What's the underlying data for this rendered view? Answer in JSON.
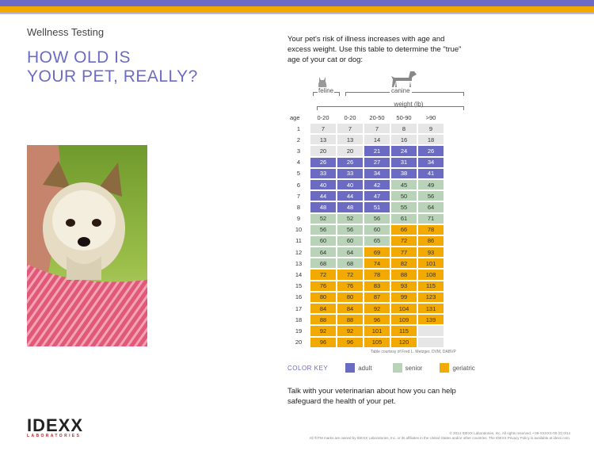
{
  "header": {
    "section": "Wellness Testing",
    "title_line1": "HOW OLD IS",
    "title_line2": "YOUR PET, REALLY?"
  },
  "intro": "Your pet's risk of illness increases with age and excess weight. Use this table to determine the \"true\" age of your cat or dog:",
  "species": {
    "feline": "feline",
    "canine": "canine"
  },
  "table": {
    "weight_label": "weight (lb)",
    "age_label": "age",
    "columns": [
      "0-20",
      "0-20",
      "20-50",
      "50-90",
      ">90"
    ],
    "rows": [
      {
        "age": "1",
        "cells": [
          [
            "7",
            "young"
          ],
          [
            "7",
            "young"
          ],
          [
            "7",
            "young"
          ],
          [
            "8",
            "young"
          ],
          [
            "9",
            "young"
          ]
        ]
      },
      {
        "age": "2",
        "cells": [
          [
            "13",
            "young"
          ],
          [
            "13",
            "young"
          ],
          [
            "14",
            "young"
          ],
          [
            "16",
            "young"
          ],
          [
            "18",
            "young"
          ]
        ]
      },
      {
        "age": "3",
        "cells": [
          [
            "20",
            "young"
          ],
          [
            "20",
            "young"
          ],
          [
            "21",
            "adult"
          ],
          [
            "24",
            "adult"
          ],
          [
            "26",
            "adult"
          ]
        ]
      },
      {
        "age": "4",
        "cells": [
          [
            "26",
            "adult"
          ],
          [
            "26",
            "adult"
          ],
          [
            "27",
            "adult"
          ],
          [
            "31",
            "adult"
          ],
          [
            "34",
            "adult"
          ]
        ]
      },
      {
        "age": "5",
        "cells": [
          [
            "33",
            "adult"
          ],
          [
            "33",
            "adult"
          ],
          [
            "34",
            "adult"
          ],
          [
            "38",
            "adult"
          ],
          [
            "41",
            "adult"
          ]
        ]
      },
      {
        "age": "6",
        "cells": [
          [
            "40",
            "adult"
          ],
          [
            "40",
            "adult"
          ],
          [
            "42",
            "adult"
          ],
          [
            "45",
            "senior"
          ],
          [
            "49",
            "senior"
          ]
        ]
      },
      {
        "age": "7",
        "cells": [
          [
            "44",
            "adult"
          ],
          [
            "44",
            "adult"
          ],
          [
            "47",
            "adult"
          ],
          [
            "50",
            "senior"
          ],
          [
            "56",
            "senior"
          ]
        ]
      },
      {
        "age": "8",
        "cells": [
          [
            "48",
            "adult"
          ],
          [
            "48",
            "adult"
          ],
          [
            "51",
            "adult"
          ],
          [
            "55",
            "senior"
          ],
          [
            "64",
            "senior"
          ]
        ]
      },
      {
        "age": "9",
        "cells": [
          [
            "52",
            "senior"
          ],
          [
            "52",
            "senior"
          ],
          [
            "56",
            "senior"
          ],
          [
            "61",
            "senior"
          ],
          [
            "71",
            "senior"
          ]
        ]
      },
      {
        "age": "10",
        "cells": [
          [
            "56",
            "senior"
          ],
          [
            "56",
            "senior"
          ],
          [
            "60",
            "senior"
          ],
          [
            "66",
            "geriatric"
          ],
          [
            "78",
            "geriatric"
          ]
        ]
      },
      {
        "age": "11",
        "cells": [
          [
            "60",
            "senior"
          ],
          [
            "60",
            "senior"
          ],
          [
            "65",
            "senior"
          ],
          [
            "72",
            "geriatric"
          ],
          [
            "86",
            "geriatric"
          ]
        ]
      },
      {
        "age": "12",
        "cells": [
          [
            "64",
            "senior"
          ],
          [
            "64",
            "senior"
          ],
          [
            "69",
            "geriatric"
          ],
          [
            "77",
            "geriatric"
          ],
          [
            "93",
            "geriatric"
          ]
        ]
      },
      {
        "age": "13",
        "cells": [
          [
            "68",
            "senior"
          ],
          [
            "68",
            "senior"
          ],
          [
            "74",
            "geriatric"
          ],
          [
            "82",
            "geriatric"
          ],
          [
            "101",
            "geriatric"
          ]
        ]
      },
      {
        "age": "14",
        "cells": [
          [
            "72",
            "geriatric"
          ],
          [
            "72",
            "geriatric"
          ],
          [
            "78",
            "geriatric"
          ],
          [
            "88",
            "geriatric"
          ],
          [
            "108",
            "geriatric"
          ]
        ]
      },
      {
        "age": "15",
        "cells": [
          [
            "76",
            "geriatric"
          ],
          [
            "76",
            "geriatric"
          ],
          [
            "83",
            "geriatric"
          ],
          [
            "93",
            "geriatric"
          ],
          [
            "115",
            "geriatric"
          ]
        ]
      },
      {
        "age": "16",
        "cells": [
          [
            "80",
            "geriatric"
          ],
          [
            "80",
            "geriatric"
          ],
          [
            "87",
            "geriatric"
          ],
          [
            "99",
            "geriatric"
          ],
          [
            "123",
            "geriatric"
          ]
        ]
      },
      {
        "age": "17",
        "cells": [
          [
            "84",
            "geriatric"
          ],
          [
            "84",
            "geriatric"
          ],
          [
            "92",
            "geriatric"
          ],
          [
            "104",
            "geriatric"
          ],
          [
            "131",
            "geriatric"
          ]
        ]
      },
      {
        "age": "18",
        "cells": [
          [
            "88",
            "geriatric"
          ],
          [
            "88",
            "geriatric"
          ],
          [
            "96",
            "geriatric"
          ],
          [
            "109",
            "geriatric"
          ],
          [
            "139",
            "geriatric"
          ]
        ]
      },
      {
        "age": "19",
        "cells": [
          [
            "92",
            "geriatric"
          ],
          [
            "92",
            "geriatric"
          ],
          [
            "101",
            "geriatric"
          ],
          [
            "115",
            "geriatric"
          ],
          [
            "",
            "none"
          ]
        ]
      },
      {
        "age": "20",
        "cells": [
          [
            "96",
            "geriatric"
          ],
          [
            "96",
            "geriatric"
          ],
          [
            "105",
            "geriatric"
          ],
          [
            "120",
            "geriatric"
          ],
          [
            "",
            "none"
          ]
        ]
      }
    ],
    "credit": "Table courtesy of Fred L. Metzger, DVM, DABVP"
  },
  "color_key": {
    "label": "COLOR KEY",
    "adult": "adult",
    "senior": "senior",
    "geriatric": "geriatric",
    "colors": {
      "adult": "#6b6bc4",
      "senior": "#b9d3b9",
      "geriatric": "#f2a900",
      "young": "#e6e6e6"
    }
  },
  "talk": "Talk with your veterinarian about how you can help safeguard the health of your pet.",
  "logo": {
    "word": "IDEXX",
    "sub": "LABORATORIES"
  },
  "footer": {
    "line1": "© 2014 IDEXX Laboratories, Inc. All rights reserved. • 09-XXXXX-00 (0) 0/14",
    "line2": "All ®/TM marks are owned by IDEXX Laboratories, Inc. or its affiliates in the United States and/or other countries. The IDEXX Privacy Policy is available at idexx.com."
  }
}
